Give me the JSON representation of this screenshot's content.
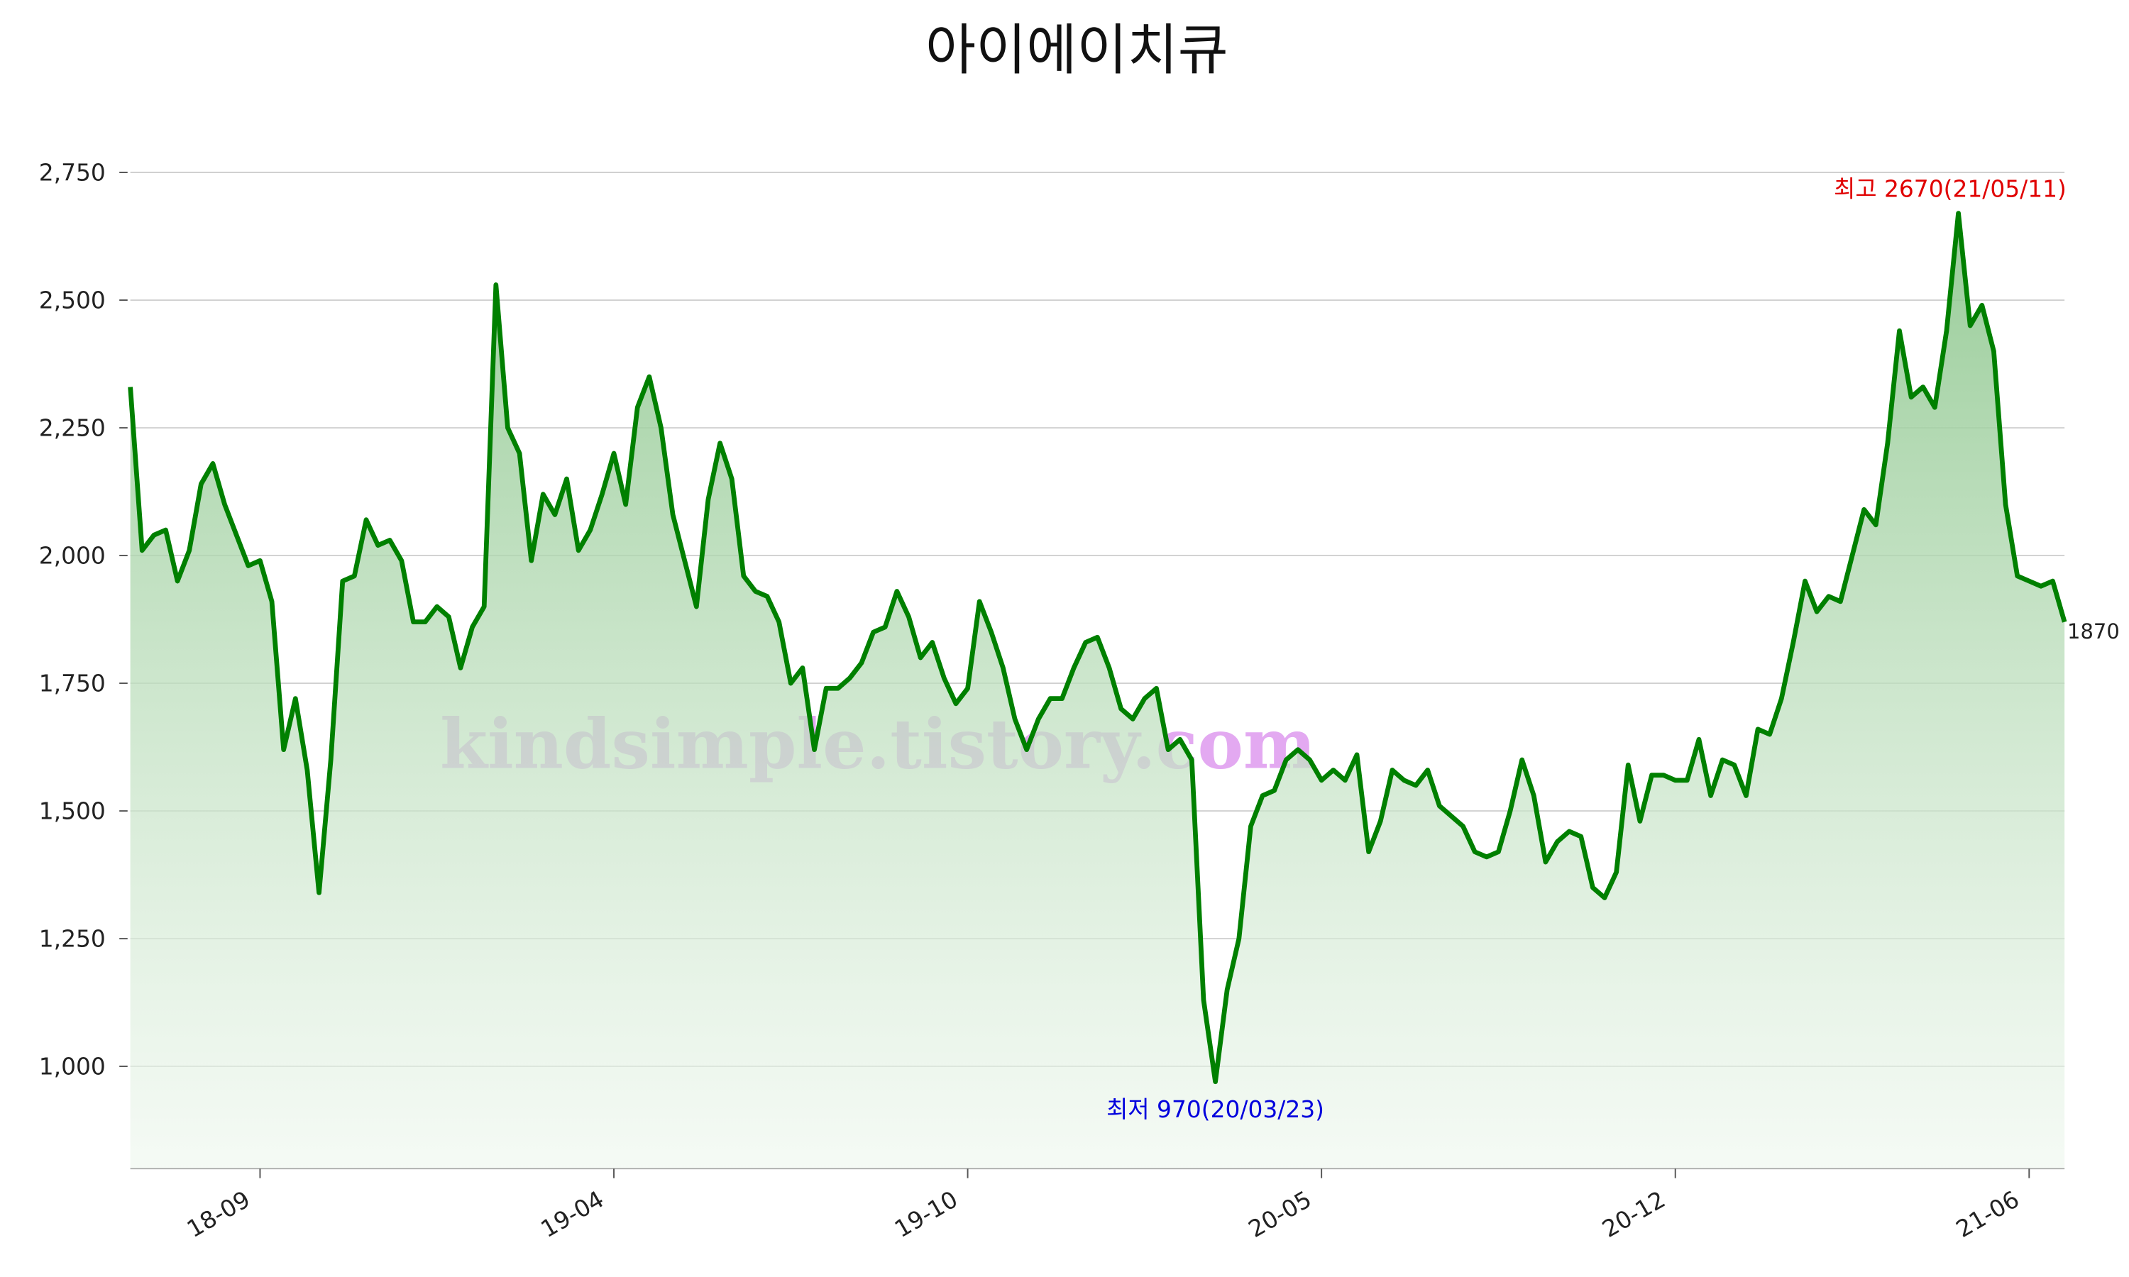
{
  "chart_data": {
    "type": "line",
    "title": "아이에이치큐",
    "watermark": "kindsimple.tistory.com",
    "annotations": {
      "high": "최고 2670(21/05/11)",
      "low": "최저 970(20/03/23)"
    },
    "color": "#008000",
    "grid": true,
    "ylim": [
      800,
      2800
    ],
    "yticks": [
      {
        "value": 1000,
        "label": "1,000"
      },
      {
        "value": 1250,
        "label": "1,250"
      },
      {
        "value": 1500,
        "label": "1,500"
      },
      {
        "value": 1750,
        "label": "1,750"
      },
      {
        "value": 2000,
        "label": "2,000"
      },
      {
        "value": 2250,
        "label": "2,250"
      },
      {
        "value": 2500,
        "label": "2,500"
      },
      {
        "value": 2750,
        "label": "2,750"
      }
    ],
    "categories": [
      null,
      null,
      null,
      null,
      null,
      null,
      null,
      null,
      null,
      null,
      null,
      "18-09",
      null,
      null,
      null,
      null,
      null,
      null,
      null,
      null,
      null,
      null,
      null,
      null,
      null,
      null,
      null,
      null,
      null,
      null,
      null,
      null,
      null,
      null,
      null,
      null,
      null,
      null,
      null,
      null,
      null,
      "19-04",
      null,
      null,
      null,
      null,
      null,
      null,
      null,
      null,
      null,
      null,
      null,
      null,
      null,
      null,
      null,
      null,
      null,
      null,
      null,
      null,
      null,
      null,
      null,
      null,
      null,
      null,
      null,
      null,
      null,
      "19-10",
      null,
      null,
      null,
      null,
      null,
      null,
      null,
      null,
      null,
      null,
      null,
      null,
      null,
      null,
      null,
      null,
      null,
      null,
      null,
      null,
      null,
      null,
      null,
      null,
      null,
      null,
      null,
      null,
      null,
      "20-05",
      null,
      null,
      null,
      null,
      null,
      null,
      null,
      null,
      null,
      null,
      null,
      null,
      null,
      null,
      null,
      null,
      null,
      null,
      null,
      null,
      null,
      null,
      null,
      null,
      null,
      null,
      null,
      null,
      null,
      "20-12",
      null,
      null,
      null,
      null,
      null,
      null,
      null,
      null,
      null,
      null,
      null,
      null,
      null,
      null,
      null,
      null,
      null,
      null,
      null,
      null,
      null,
      null,
      null,
      null,
      null,
      null,
      null,
      null,
      null,
      "21-06",
      null,
      null,
      null
    ],
    "values": [
      2330,
      2010,
      2040,
      2050,
      1950,
      2010,
      2140,
      2180,
      2100,
      2040,
      1980,
      1990,
      1910,
      1620,
      1720,
      1580,
      1340,
      1600,
      1950,
      1960,
      2070,
      2020,
      2030,
      1990,
      1870,
      1870,
      1900,
      1880,
      1780,
      1860,
      1900,
      2530,
      2250,
      2200,
      1990,
      2120,
      2080,
      2150,
      2010,
      2050,
      2120,
      2200,
      2100,
      2290,
      2350,
      2250,
      2080,
      1990,
      1900,
      2110,
      2220,
      2150,
      1960,
      1930,
      1920,
      1870,
      1750,
      1780,
      1620,
      1740,
      1740,
      1760,
      1790,
      1850,
      1860,
      1930,
      1880,
      1800,
      1830,
      1760,
      1710,
      1740,
      1910,
      1850,
      1780,
      1680,
      1620,
      1680,
      1720,
      1720,
      1780,
      1830,
      1840,
      1780,
      1700,
      1680,
      1720,
      1740,
      1620,
      1640,
      1600,
      1130,
      970,
      1150,
      1250,
      1470,
      1530,
      1540,
      1600,
      1620,
      1600,
      1560,
      1580,
      1560,
      1610,
      1420,
      1480,
      1580,
      1560,
      1550,
      1580,
      1510,
      1490,
      1470,
      1420,
      1410,
      1420,
      1500,
      1600,
      1530,
      1400,
      1440,
      1460,
      1450,
      1350,
      1330,
      1380,
      1590,
      1480,
      1570,
      1570,
      1560,
      1560,
      1640,
      1530,
      1600,
      1590,
      1530,
      1660,
      1650,
      1720,
      1830,
      1950,
      1890,
      1920,
      1910,
      2000,
      2090,
      2060,
      2220,
      2440,
      2310,
      2330,
      2290,
      2440,
      2670,
      2450,
      2490,
      2400,
      2100,
      1960,
      1950,
      1940,
      1950,
      1870
    ]
  }
}
